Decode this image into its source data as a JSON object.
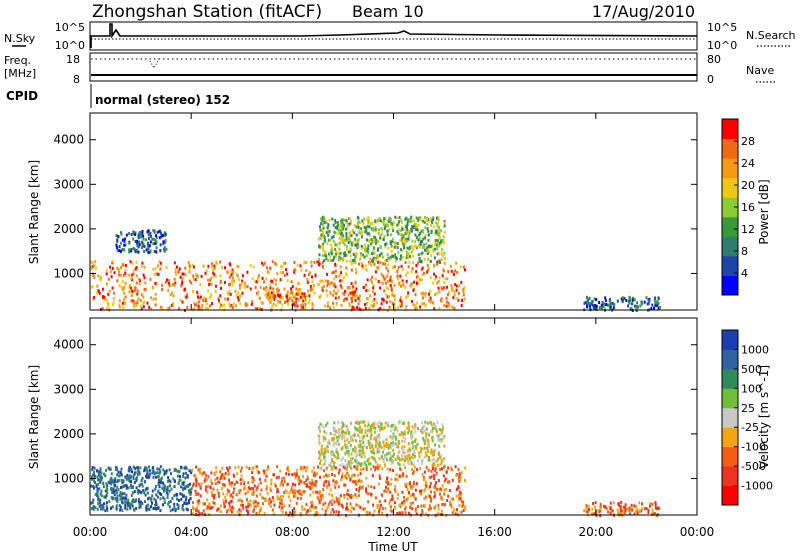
{
  "header": {
    "station_title": "Zhongshan Station (fitACF)",
    "beam": "Beam 10",
    "date": "17/Aug/2010"
  },
  "scan_panel": {
    "left_label": "N.Sky",
    "right_label": "N.Search",
    "left_ticks": [
      "10^5",
      "10^0"
    ],
    "right_ticks": [
      "10^5",
      "10^0"
    ]
  },
  "freq_panel": {
    "left_label_line1": "Freq.",
    "left_label_line2": "[MHz]",
    "left_ticks": [
      "18",
      "8"
    ],
    "right_label": "Nave",
    "right_ticks": [
      "80",
      "0"
    ]
  },
  "cpid": {
    "label": "CPID",
    "mode": "normal (stereo) 152"
  },
  "time_axis": {
    "label": "Time UT",
    "ticks": [
      "00:00",
      "04:00",
      "08:00",
      "12:00",
      "16:00",
      "20:00",
      "00:00"
    ]
  },
  "colors": {
    "power_scale": [
      "#0000ff",
      "#1c45a8",
      "#2e7d6e",
      "#3a9a3a",
      "#8ccc32",
      "#f0c814",
      "#f59a14",
      "#f06a14",
      "#ff0000"
    ],
    "velocity_scale": [
      "#ff0000",
      "#ee3322",
      "#f25c14",
      "#f5a314",
      "#c8c8c8",
      "#6fbf3a",
      "#2e8b57",
      "#2f62a0",
      "#1c3fb0"
    ]
  },
  "chart_data": [
    {
      "type": "heatmap",
      "title": "",
      "xlabel": "Time UT",
      "ylabel": "Slant Range [km]",
      "xlim": [
        0,
        24
      ],
      "ylim": [
        180,
        4600
      ],
      "x_ticks": [
        "00:00",
        "04:00",
        "08:00",
        "12:00",
        "16:00",
        "20:00",
        "00:00"
      ],
      "y_ticks": [
        1000,
        2000,
        3000,
        4000
      ],
      "colorbar": {
        "label": "Power [dB]",
        "ticks": [
          "4",
          "8",
          "12",
          "16",
          "20",
          "24",
          "28"
        ]
      },
      "regions": [
        {
          "t_start": 0.0,
          "t_end": 14.8,
          "range_min": 200,
          "range_max": 1300,
          "dominant": "orange/red"
        },
        {
          "t_start": 1.0,
          "t_end": 3.0,
          "range_min": 1500,
          "range_max": 2000,
          "dominant": "blue/green"
        },
        {
          "t_start": 9.0,
          "t_end": 14.0,
          "range_min": 1300,
          "range_max": 2300,
          "dominant": "green/yellow"
        },
        {
          "t_start": 7.0,
          "t_end": 8.5,
          "range_min": 300,
          "range_max": 700,
          "dominant": "red"
        },
        {
          "t_start": 19.5,
          "t_end": 22.5,
          "range_min": 200,
          "range_max": 500,
          "dominant": "blue/green"
        }
      ]
    },
    {
      "type": "heatmap",
      "title": "",
      "xlabel": "Time UT",
      "ylabel": "Slant Range [km]",
      "xlim": [
        0,
        24
      ],
      "ylim": [
        180,
        4600
      ],
      "x_ticks": [
        "00:00",
        "04:00",
        "08:00",
        "12:00",
        "16:00",
        "20:00",
        "00:00"
      ],
      "y_ticks": [
        1000,
        2000,
        3000,
        4000
      ],
      "colorbar": {
        "label": "Velocity [m s^-1]",
        "ticks": [
          "1000",
          "500",
          "100",
          "25",
          "-25",
          "-100",
          "-500",
          "-1000"
        ]
      },
      "regions": [
        {
          "t_start": 0.0,
          "t_end": 4.0,
          "range_min": 300,
          "range_max": 1300,
          "dominant": "blue"
        },
        {
          "t_start": 4.0,
          "t_end": 14.8,
          "range_min": 200,
          "range_max": 1300,
          "dominant": "orange"
        },
        {
          "t_start": 9.0,
          "t_end": 14.0,
          "range_min": 1300,
          "range_max": 2300,
          "dominant": "orange/grey"
        },
        {
          "t_start": 19.5,
          "t_end": 22.5,
          "range_min": 200,
          "range_max": 500,
          "dominant": "orange/green"
        }
      ]
    }
  ]
}
